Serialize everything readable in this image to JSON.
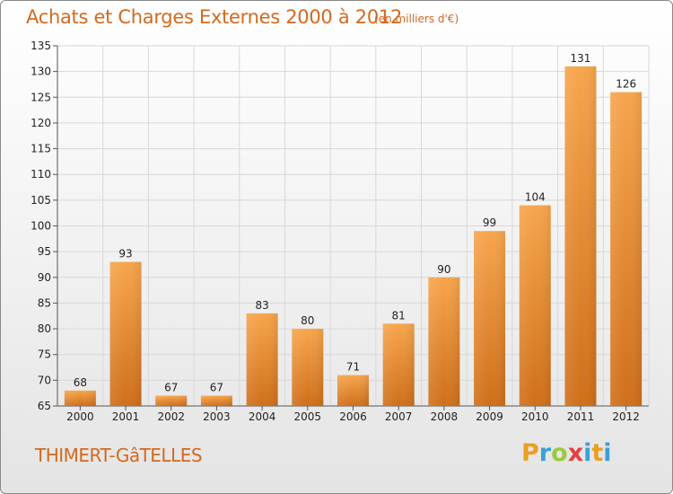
{
  "header": {
    "title": "Achats et Charges Externes 2000 à 2012",
    "subtitle": "(en milliers d'€)"
  },
  "footer": {
    "location": "THIMERT-GâTELLES",
    "logo_letters": [
      "P",
      "r",
      "o",
      "x",
      "i",
      "t",
      "i"
    ],
    "logo_colors": [
      "#e8a021",
      "#3aa0d8",
      "#9bc93c",
      "#e34040",
      "#3aa0d8",
      "#e8a021",
      "#3aa0d8"
    ]
  },
  "colors": {
    "bar_light": "#f7a54c",
    "bar_dark": "#cf6f1a",
    "grid": "#d8d8d8",
    "axis": "#555555"
  },
  "chart_data": {
    "type": "bar",
    "title": "Achats et Charges Externes 2000 à 2012",
    "subtitle": "(en milliers d'€)",
    "categories": [
      "2000",
      "2001",
      "2002",
      "2003",
      "2004",
      "2005",
      "2006",
      "2007",
      "2008",
      "2009",
      "2010",
      "2011",
      "2012"
    ],
    "values": [
      68,
      93,
      67,
      67,
      83,
      80,
      71,
      81,
      90,
      99,
      104,
      131,
      126
    ],
    "ylim": [
      65,
      135
    ],
    "yticks": [
      65,
      70,
      75,
      80,
      85,
      90,
      95,
      100,
      105,
      110,
      115,
      120,
      125,
      130,
      135
    ],
    "grid": true,
    "xlabel": "",
    "ylabel": ""
  }
}
